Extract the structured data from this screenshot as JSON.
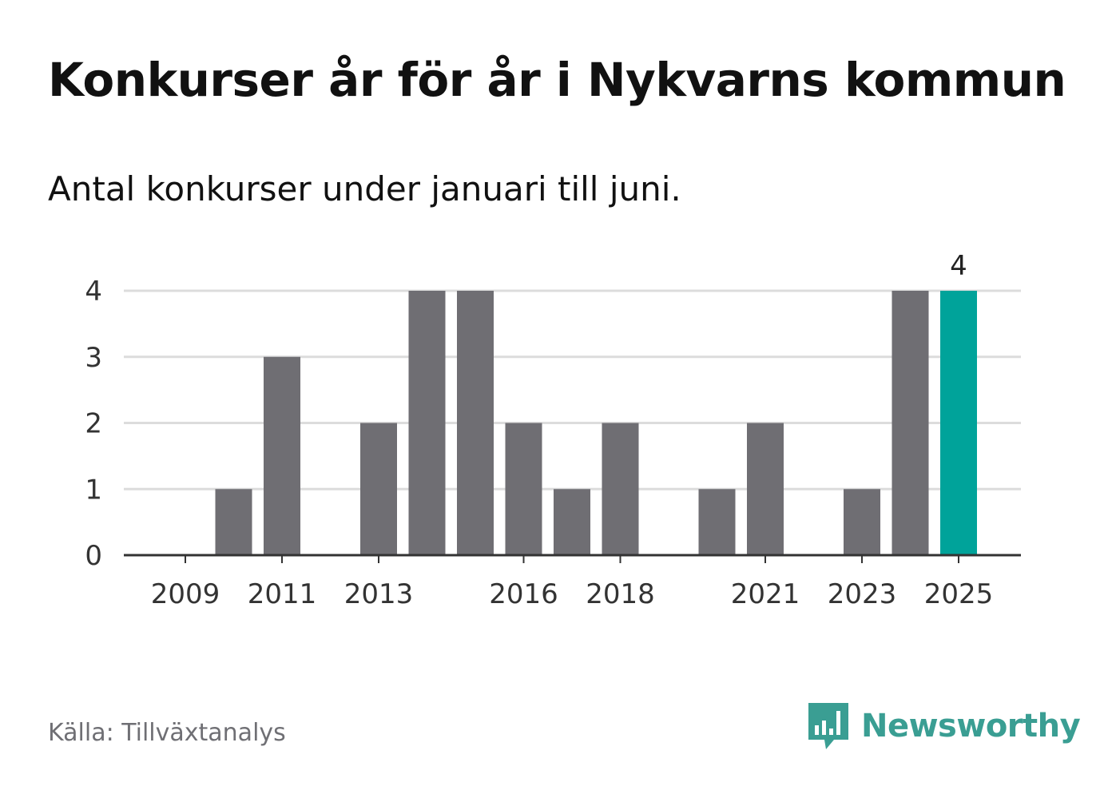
{
  "header": {
    "title": "Konkurser år för år i Nykvarns kommun",
    "subtitle": "Antal konkurser under januari till juni."
  },
  "footer": {
    "source": "Källa: Tillväxtanalys",
    "brand": "Newsworthy",
    "brand_icon": "bar-chart-speech-bubble-icon"
  },
  "colors": {
    "bar": "#6f6e73",
    "highlight": "#00a39a",
    "grid": "#dcdcdc",
    "axis": "#333333",
    "text": "#333333",
    "brand": "#3a9e93"
  },
  "chart_data": {
    "type": "bar",
    "categories": [
      2009,
      2010,
      2011,
      2012,
      2013,
      2014,
      2015,
      2016,
      2017,
      2018,
      2019,
      2020,
      2021,
      2022,
      2023,
      2024,
      2025
    ],
    "values": [
      0,
      1,
      3,
      0,
      2,
      4,
      4,
      2,
      1,
      2,
      0,
      1,
      2,
      0,
      1,
      4,
      4
    ],
    "x_tick_labels": [
      "2009",
      "2011",
      "2013",
      "2016",
      "2018",
      "2021",
      "2023",
      "2025"
    ],
    "y_ticks": [
      0,
      1,
      2,
      3,
      4
    ],
    "ylim": [
      0,
      4
    ],
    "highlight_category": 2025,
    "data_labels": [
      {
        "category": 2025,
        "label": "4"
      }
    ],
    "grid": true,
    "legend": "none"
  }
}
